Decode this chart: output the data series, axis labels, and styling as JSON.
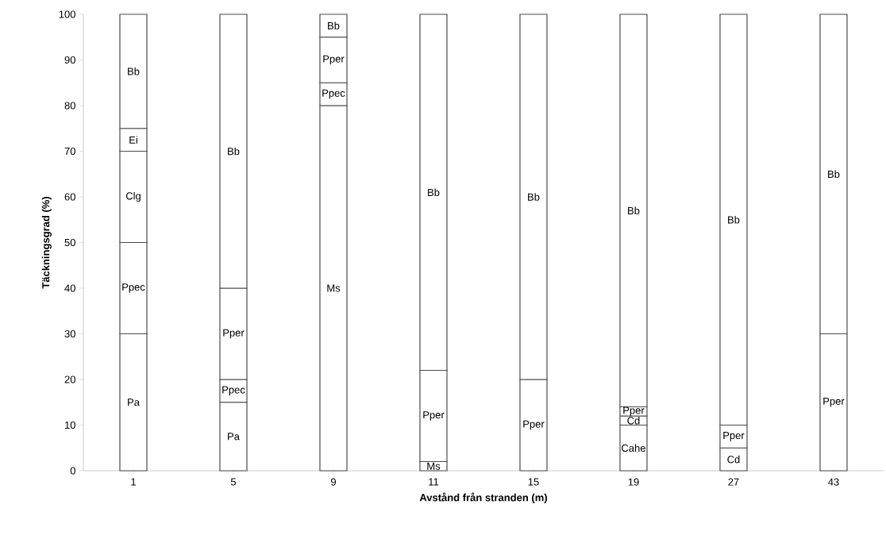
{
  "chart_data": {
    "type": "bar",
    "stacked": true,
    "xlabel": "Avstånd från stranden (m)",
    "ylabel": "Täckningsgrad (%)",
    "categories": [
      "1",
      "5",
      "9",
      "11",
      "15",
      "19",
      "27",
      "43"
    ],
    "ylim": [
      0,
      100
    ],
    "yticks": [
      0,
      10,
      20,
      30,
      40,
      50,
      60,
      70,
      80,
      90,
      100
    ],
    "series": [
      {
        "name": "Cahe",
        "color": "#ffffff",
        "values": [
          null,
          null,
          null,
          null,
          null,
          10,
          null,
          null
        ]
      },
      {
        "name": "Pa",
        "color": "#ffffff",
        "values": [
          30,
          15,
          null,
          null,
          null,
          null,
          null,
          null
        ]
      },
      {
        "name": "Ms",
        "color": "#ffffff",
        "values": [
          null,
          null,
          80,
          2,
          null,
          null,
          null,
          null
        ]
      },
      {
        "name": "Cd",
        "color": "#ffffff",
        "values": [
          null,
          null,
          null,
          null,
          null,
          2,
          5,
          null
        ]
      },
      {
        "name": "Ppec",
        "color": "#ffffff",
        "values": [
          20,
          5,
          5,
          null,
          null,
          null,
          null,
          null
        ]
      },
      {
        "name": "Clg",
        "color": "#ffffff",
        "values": [
          20,
          null,
          null,
          null,
          null,
          null,
          null,
          null
        ]
      },
      {
        "name": "Ei",
        "color": "#ffffff",
        "values": [
          5,
          null,
          null,
          null,
          null,
          null,
          null,
          null
        ]
      },
      {
        "name": "Pper",
        "color": "#ffffff",
        "values": [
          null,
          20,
          10,
          20,
          20,
          2,
          5,
          30
        ]
      },
      {
        "name": "Bb",
        "color": "#ffffff",
        "values": [
          25,
          60,
          5,
          78,
          80,
          86,
          90,
          70
        ]
      }
    ]
  }
}
